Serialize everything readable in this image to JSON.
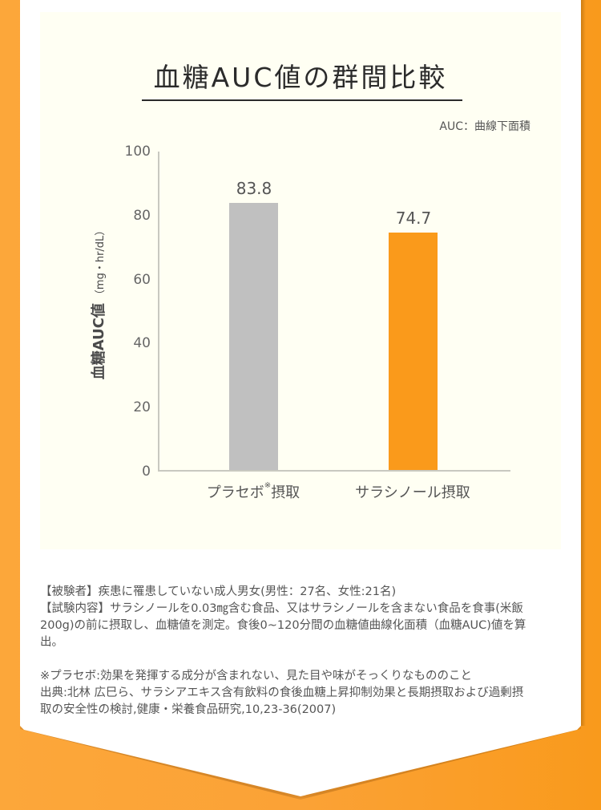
{
  "title": "血糖AUC値の群間比較",
  "note": "AUC：曲線下面積",
  "chart_data": {
    "type": "bar",
    "title": "血糖AUC値の群間比較",
    "subtitle": "AUC：曲線下面積",
    "categories": [
      "プラセボ※摂取",
      "サラシノール摂取"
    ],
    "values": [
      83.8,
      74.7
    ],
    "colors": [
      "#c0c0c0",
      "#fa9a1b"
    ],
    "xlabel": "",
    "ylabel": "血糖AUC値（mg・hr/dL）",
    "ylim": [
      0,
      100
    ],
    "yticks": [
      0,
      20,
      40,
      60,
      80,
      100
    ],
    "grid": false,
    "legend": "none",
    "data_labels": [
      "83.8",
      "74.7"
    ]
  },
  "axis": {
    "ylabel_main": "血糖AUC値",
    "ylabel_unit": "（mg・hr/dL）",
    "ticks": [
      "100",
      "80",
      "60",
      "40",
      "20",
      "0"
    ]
  },
  "bars": [
    {
      "label_main": "プラセボ",
      "label_sup": "※",
      "label_tail": "摂取",
      "value": "83.8",
      "color": "#c0c0c0"
    },
    {
      "label_main": "サラシノール摂取",
      "label_sup": "",
      "label_tail": "",
      "value": "74.7",
      "color": "#fa9a1b"
    }
  ],
  "footnotes": {
    "subjects": "【被験者】疾患に罹患していない成人男女(男性：27名、女性:21名)",
    "content_1": "【試験内容】サラシノールを0.03㎎含む食品、又はサラシノールを含まない食品を食事(米飯",
    "content_2": "200g)の前に摂取し、血糖値を測定。食後0~120分間の血糖値曲線化面積（血糖AUC)値を算",
    "content_3": "出。",
    "placebo_note": "※プラセボ:効果を発揮する成分が含まれない、見た目や味がそっくりなもののこと",
    "source_1": "出典:北林 広巳ら、サラシアエキス含有飲料の食後血糖上昇抑制効果と長期摂取および過剰摂",
    "source_2": "取の安全性の検討,健康・栄養食品研究,10,23-36(2007)"
  }
}
